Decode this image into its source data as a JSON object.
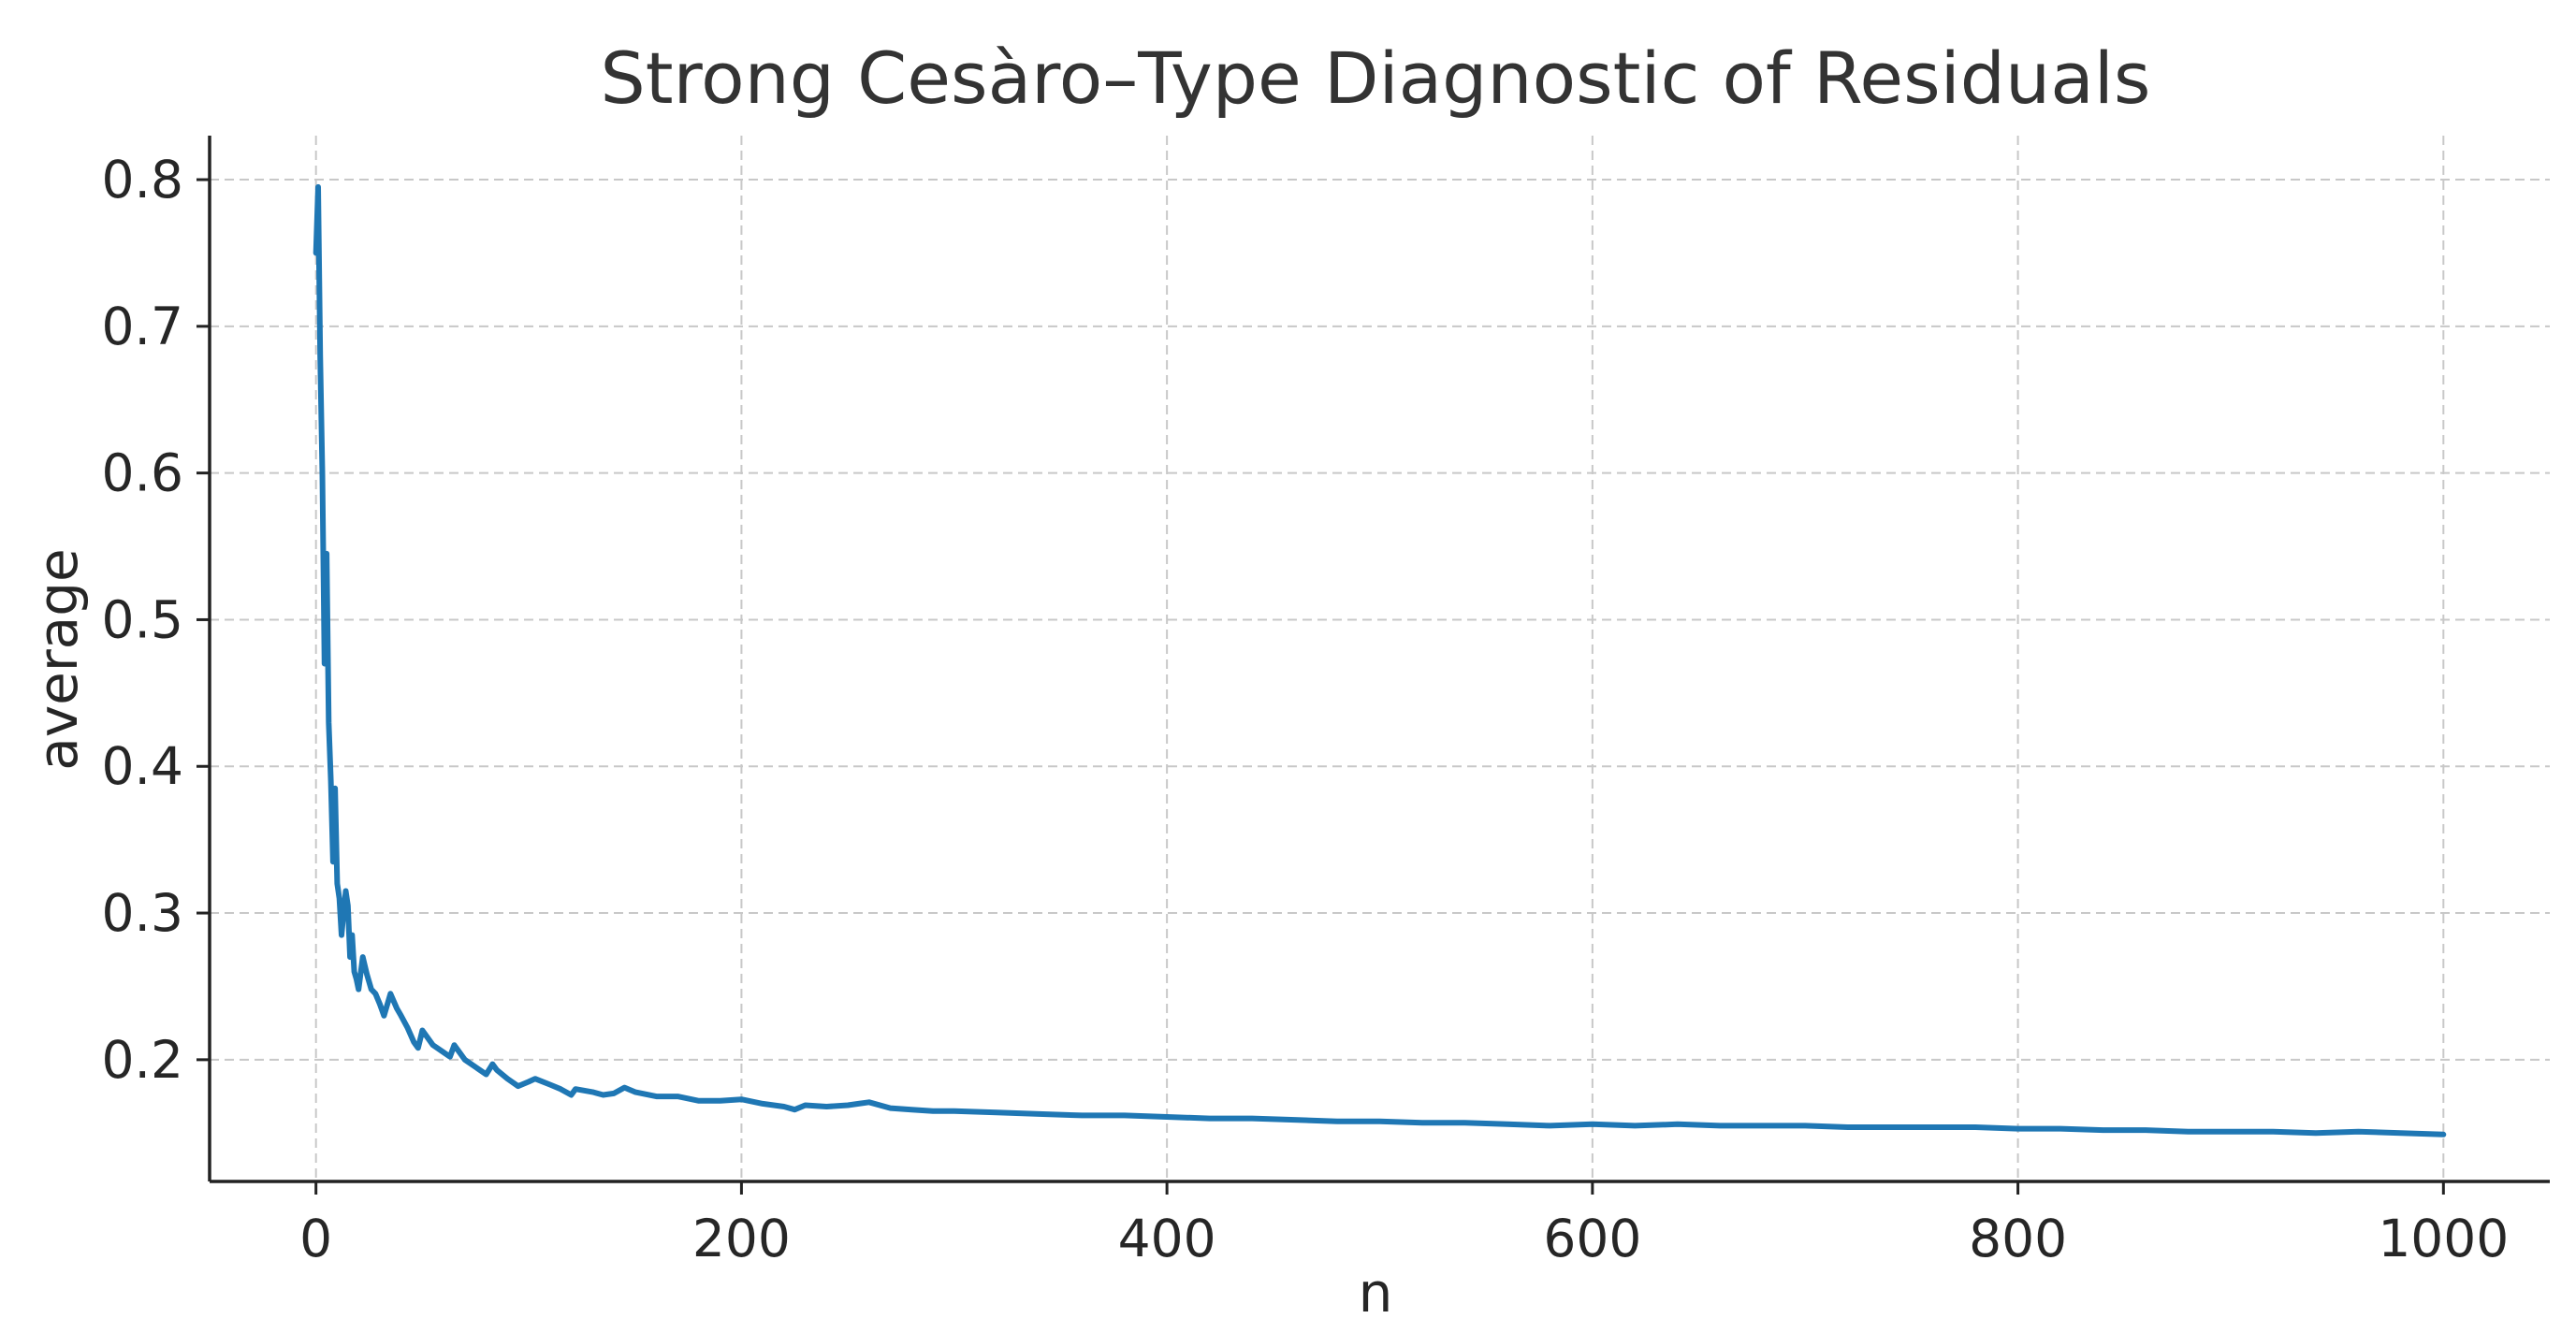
{
  "chart_data": {
    "type": "line",
    "title": "Strong Cesàro–Type Diagnostic of Residuals",
    "xlabel": "n",
    "ylabel": "average",
    "xlim": [
      -50,
      1050
    ],
    "ylim": [
      0.117,
      0.83
    ],
    "x_ticks": [
      0,
      200,
      400,
      600,
      800,
      1000
    ],
    "x_tick_labels": [
      "0",
      "200",
      "400",
      "600",
      "800",
      "1000"
    ],
    "y_ticks": [
      0.2,
      0.3,
      0.4,
      0.5,
      0.6,
      0.7,
      0.8
    ],
    "y_tick_labels": [
      "0.2",
      "0.3",
      "0.4",
      "0.5",
      "0.6",
      "0.7",
      "0.8"
    ],
    "grid": true,
    "legend": "none",
    "series": [
      {
        "color": "#1f77b4",
        "x": [
          0,
          1,
          2,
          3,
          4,
          5,
          6,
          7,
          8,
          9,
          10,
          11,
          12,
          13,
          14,
          15,
          16,
          17,
          18,
          19,
          20,
          22,
          24,
          26,
          28,
          30,
          32,
          35,
          38,
          40,
          43,
          46,
          48,
          50,
          55,
          60,
          63,
          65,
          70,
          75,
          80,
          83,
          85,
          90,
          95,
          100,
          103,
          110,
          115,
          120,
          122,
          130,
          135,
          140,
          145,
          150,
          160,
          170,
          180,
          190,
          200,
          210,
          220,
          225,
          230,
          240,
          250,
          255,
          260,
          270,
          280,
          290,
          300,
          320,
          340,
          360,
          380,
          400,
          420,
          440,
          460,
          480,
          500,
          520,
          540,
          560,
          580,
          600,
          620,
          640,
          660,
          680,
          700,
          720,
          740,
          760,
          780,
          800,
          820,
          840,
          860,
          880,
          900,
          920,
          940,
          960,
          980,
          1000
        ],
        "values": [
          0.75,
          0.795,
          0.68,
          0.6,
          0.47,
          0.545,
          0.43,
          0.39,
          0.335,
          0.385,
          0.32,
          0.31,
          0.285,
          0.3,
          0.315,
          0.305,
          0.27,
          0.285,
          0.26,
          0.255,
          0.248,
          0.27,
          0.258,
          0.248,
          0.245,
          0.238,
          0.23,
          0.245,
          0.235,
          0.23,
          0.222,
          0.212,
          0.208,
          0.22,
          0.21,
          0.205,
          0.202,
          0.21,
          0.2,
          0.195,
          0.19,
          0.197,
          0.193,
          0.187,
          0.182,
          0.185,
          0.187,
          0.183,
          0.18,
          0.176,
          0.18,
          0.178,
          0.176,
          0.177,
          0.181,
          0.178,
          0.175,
          0.175,
          0.172,
          0.172,
          0.173,
          0.17,
          0.168,
          0.166,
          0.169,
          0.168,
          0.169,
          0.17,
          0.171,
          0.167,
          0.166,
          0.165,
          0.165,
          0.164,
          0.163,
          0.162,
          0.162,
          0.161,
          0.16,
          0.16,
          0.159,
          0.158,
          0.158,
          0.157,
          0.157,
          0.156,
          0.155,
          0.156,
          0.155,
          0.156,
          0.155,
          0.155,
          0.155,
          0.154,
          0.154,
          0.154,
          0.154,
          0.153,
          0.153,
          0.152,
          0.152,
          0.151,
          0.151,
          0.151,
          0.15,
          0.151,
          0.15,
          0.149
        ]
      }
    ]
  }
}
